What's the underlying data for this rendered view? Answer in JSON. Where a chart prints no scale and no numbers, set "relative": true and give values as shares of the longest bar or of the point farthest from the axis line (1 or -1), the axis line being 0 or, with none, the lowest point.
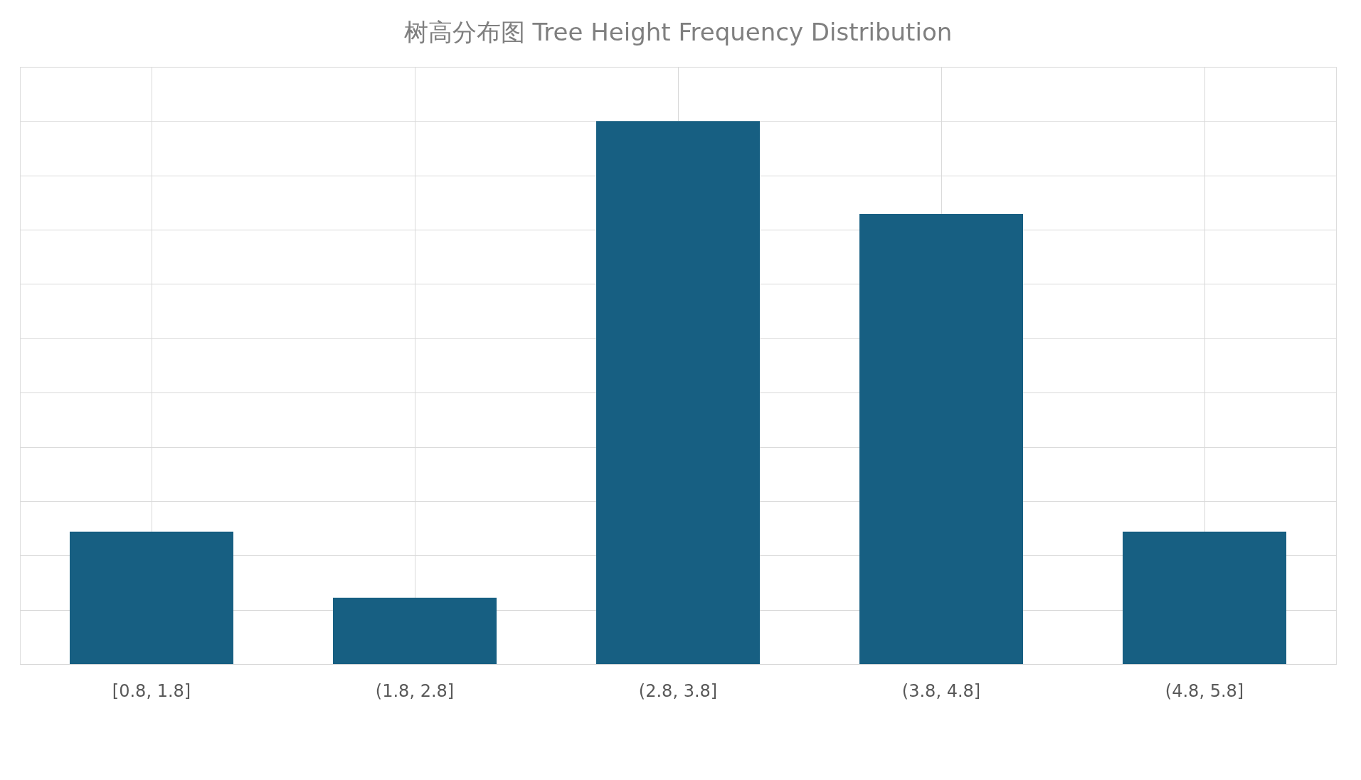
{
  "chart_data": {
    "type": "bar",
    "title": "树高分布图 Tree Height Frequency Distribution",
    "categories": [
      "[0.8, 1.8]",
      "(1.8, 2.8]",
      "(2.8, 3.8]",
      "(3.8, 4.8]",
      "(4.8, 5.8]"
    ],
    "values": [
      0.244,
      0.122,
      1,
      0.829,
      0.244
    ],
    "color": "#175f82",
    "relative": true,
    "grid": true
  }
}
